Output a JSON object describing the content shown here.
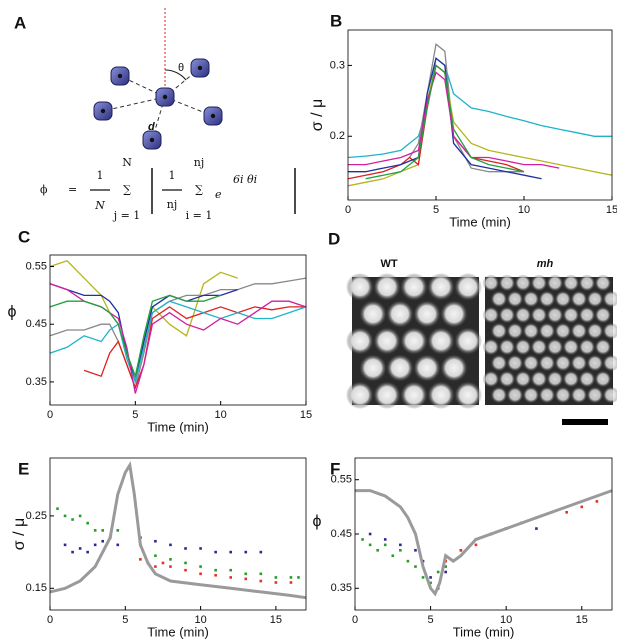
{
  "panel_a": {
    "label": "A",
    "theta": "θ",
    "d": "d",
    "formula": {
      "lhs": "ϕ",
      "eq": "=",
      "one": "1",
      "N": "N",
      "sum_top": "N",
      "sigma": "∑",
      "sum_bottom": "j = 1",
      "one2": "1",
      "nj": "nj",
      "sum2_top": "nj",
      "sum2_bottom": "i = 1",
      "e": "e",
      "exponent": "6i θi"
    }
  },
  "panel_d": {
    "label": "D",
    "left_title": "WT",
    "right_title": "mh"
  },
  "chart_data": [
    {
      "panel": "B",
      "type": "line",
      "ylabel": "σ / μ",
      "xlabel": "Time (min)",
      "xlim": [
        0,
        15
      ],
      "xticks": [
        0,
        5,
        10,
        15
      ],
      "ylim": [
        0.11,
        0.35
      ],
      "yticks": [
        0.2,
        0.3
      ],
      "x": [
        0,
        1,
        2,
        3,
        3.5,
        4,
        4.5,
        5,
        5.5,
        6,
        7,
        8,
        9,
        10,
        11,
        12,
        13,
        14,
        15
      ],
      "series": [
        {
          "color": "#1fb3c8",
          "values": [
            0.17,
            0.172,
            0.175,
            0.18,
            0.19,
            0.2,
            0.24,
            0.31,
            0.3,
            0.26,
            0.24,
            0.235,
            0.228,
            0.222,
            0.215,
            0.21,
            0.205,
            0.2,
            0.2
          ]
        },
        {
          "color": "#888888",
          "values": [
            null,
            null,
            null,
            null,
            0.17,
            0.19,
            0.26,
            0.33,
            0.32,
            0.2,
            0.155,
            0.15,
            0.15,
            0.15,
            null,
            null,
            null,
            null,
            null
          ]
        },
        {
          "color": "#b5b51f",
          "values": [
            0.13,
            0.135,
            0.14,
            0.15,
            0.155,
            0.16,
            0.25,
            0.3,
            0.29,
            0.22,
            0.19,
            0.18,
            0.175,
            0.17,
            0.165,
            0.16,
            0.155,
            0.15,
            0.145
          ]
        },
        {
          "color": "#e02020",
          "values": [
            0.14,
            0.145,
            0.15,
            0.16,
            0.17,
            0.16,
            0.24,
            0.3,
            0.29,
            0.2,
            0.17,
            0.165,
            0.16,
            0.15,
            null,
            null,
            null,
            null,
            null
          ]
        },
        {
          "color": "#2030a0",
          "values": [
            0.15,
            0.15,
            0.155,
            0.16,
            0.165,
            0.17,
            0.26,
            0.31,
            0.3,
            0.19,
            0.16,
            0.155,
            0.15,
            0.145,
            0.14,
            null,
            null,
            null,
            null
          ]
        },
        {
          "color": "#d020a0",
          "values": [
            0.16,
            0.16,
            0.165,
            0.17,
            0.175,
            0.18,
            0.25,
            0.29,
            0.28,
            0.2,
            0.17,
            0.17,
            0.165,
            0.16,
            0.16,
            0.155,
            null,
            null,
            null
          ]
        },
        {
          "color": "#20a040",
          "values": [
            null,
            0.14,
            0.145,
            0.15,
            0.16,
            0.17,
            0.24,
            0.3,
            0.29,
            0.21,
            0.17,
            0.16,
            0.155,
            0.15,
            null,
            null,
            null,
            null,
            null
          ]
        }
      ]
    },
    {
      "panel": "C",
      "type": "line",
      "ylabel": "ϕ",
      "xlabel": "Time (min)",
      "xlim": [
        0,
        15
      ],
      "xticks": [
        0,
        5,
        10,
        15
      ],
      "ylim": [
        0.31,
        0.57
      ],
      "yticks": [
        0.35,
        0.45,
        0.55
      ],
      "x": [
        0,
        1,
        2,
        3,
        3.5,
        4,
        4.5,
        5,
        5.5,
        6,
        7,
        8,
        9,
        10,
        11,
        12,
        13,
        14,
        15
      ],
      "series": [
        {
          "color": "#888888",
          "values": [
            0.43,
            0.44,
            0.44,
            0.45,
            0.45,
            0.42,
            0.38,
            0.34,
            0.4,
            0.47,
            0.49,
            0.5,
            0.5,
            0.51,
            0.51,
            0.52,
            0.52,
            0.525,
            0.53
          ]
        },
        {
          "color": "#b5b51f",
          "values": [
            0.55,
            0.56,
            0.53,
            0.5,
            0.47,
            0.45,
            0.4,
            0.36,
            0.42,
            0.48,
            0.45,
            0.43,
            0.52,
            0.54,
            0.53,
            null,
            null,
            null,
            null
          ]
        },
        {
          "color": "#e02020",
          "values": [
            null,
            null,
            0.37,
            0.36,
            0.4,
            0.42,
            0.38,
            0.34,
            0.38,
            0.46,
            0.48,
            0.46,
            0.47,
            0.48,
            0.47,
            0.48,
            0.475,
            0.48,
            0.48
          ]
        },
        {
          "color": "#2030a0",
          "values": [
            0.52,
            0.51,
            0.5,
            0.5,
            0.49,
            0.47,
            0.4,
            0.35,
            0.42,
            0.48,
            0.5,
            0.49,
            0.5,
            0.5,
            0.51,
            null,
            null,
            null,
            null
          ]
        },
        {
          "color": "#1fb3c8",
          "values": [
            0.4,
            0.41,
            0.43,
            0.42,
            0.44,
            0.45,
            0.39,
            0.35,
            0.41,
            0.47,
            0.49,
            0.48,
            0.47,
            0.46,
            0.47,
            0.46,
            0.46,
            0.47,
            0.48
          ]
        },
        {
          "color": "#d020a0",
          "values": [
            0.52,
            0.51,
            0.49,
            0.48,
            0.47,
            0.46,
            0.41,
            0.33,
            0.38,
            0.45,
            0.47,
            0.45,
            0.44,
            0.46,
            0.45,
            0.47,
            0.49,
            0.49,
            0.48
          ]
        },
        {
          "color": "#20a040",
          "values": [
            0.48,
            0.49,
            0.49,
            0.48,
            0.47,
            0.45,
            0.4,
            0.36,
            0.43,
            0.49,
            0.5,
            0.49,
            0.49,
            0.5,
            null,
            null,
            null,
            null,
            null
          ]
        }
      ]
    },
    {
      "panel": "E",
      "type": "scatter",
      "ylabel": "σ / μ",
      "xlabel": "Time  (min)",
      "xlim": [
        0,
        17
      ],
      "xticks": [
        0,
        5,
        10,
        15
      ],
      "ylim": [
        0.12,
        0.33
      ],
      "yticks": [
        0.15,
        0.25
      ],
      "series": [
        {
          "type": "scatter",
          "color": "#2a9a2a",
          "x": [
            0.5,
            1,
            1.5,
            2,
            2.5,
            3,
            3.5,
            4,
            4.5,
            6,
            7,
            8,
            9,
            10,
            11,
            12,
            13,
            14,
            15,
            16,
            16.5
          ],
          "values": [
            0.26,
            0.25,
            0.245,
            0.25,
            0.24,
            0.23,
            0.23,
            0.22,
            0.23,
            0.21,
            0.195,
            0.19,
            0.185,
            0.18,
            0.175,
            0.175,
            0.17,
            0.17,
            0.165,
            0.165,
            0.165
          ]
        },
        {
          "type": "scatter",
          "color": "#2a2a90",
          "x": [
            1,
            1.5,
            2,
            2.5,
            3,
            3.5,
            4,
            4.5,
            6,
            7,
            8,
            9,
            10,
            11,
            12,
            13,
            14
          ],
          "values": [
            0.21,
            0.2,
            0.205,
            0.2,
            0.21,
            0.215,
            0.22,
            0.21,
            0.22,
            0.215,
            0.21,
            0.205,
            0.205,
            0.2,
            0.2,
            0.2,
            0.2
          ]
        },
        {
          "type": "scatter",
          "color": "#e83020",
          "x": [
            6,
            6.5,
            7,
            7.5,
            8,
            9,
            10,
            11,
            12,
            13,
            14,
            15,
            16
          ],
          "values": [
            0.19,
            0.185,
            0.18,
            0.185,
            0.18,
            0.175,
            0.17,
            0.168,
            0.165,
            0.163,
            0.16,
            0.158,
            0.158
          ]
        },
        {
          "type": "line",
          "color": "#9a9a9a",
          "x": [
            0,
            1,
            2,
            3,
            4,
            4.5,
            5,
            5.3,
            5.6,
            6,
            6.5,
            7,
            8,
            10,
            12,
            14,
            16,
            17
          ],
          "values": [
            0.145,
            0.15,
            0.16,
            0.18,
            0.22,
            0.28,
            0.31,
            0.32,
            0.28,
            0.21,
            0.185,
            0.17,
            0.16,
            0.155,
            0.15,
            0.145,
            0.14,
            0.137
          ]
        }
      ]
    },
    {
      "panel": "F",
      "type": "scatter",
      "ylabel": "ϕ",
      "xlabel": "Time  (min)",
      "xlim": [
        0,
        17
      ],
      "xticks": [
        0,
        5,
        10,
        15
      ],
      "ylim": [
        0.31,
        0.59
      ],
      "yticks": [
        0.35,
        0.45,
        0.55
      ],
      "series": [
        {
          "type": "scatter",
          "color": "#2a9a2a",
          "x": [
            0.5,
            1,
            1.5,
            2,
            2.5,
            3,
            3.5,
            4,
            4.5,
            5,
            5.5,
            6
          ],
          "values": [
            0.44,
            0.43,
            0.42,
            0.43,
            0.41,
            0.42,
            0.4,
            0.39,
            0.37,
            0.36,
            0.38,
            0.39
          ]
        },
        {
          "type": "scatter",
          "color": "#2a2a90",
          "x": [
            1,
            2,
            3,
            4,
            4.5,
            5,
            5.5,
            6,
            7,
            8,
            9,
            10,
            11,
            12
          ],
          "values": [
            0.45,
            0.44,
            0.43,
            0.42,
            0.4,
            0.37,
            0.35,
            0.38,
            0.42,
            0.44,
            0.45,
            0.46,
            0.47,
            0.46
          ]
        },
        {
          "type": "scatter",
          "color": "#e83020",
          "x": [
            6,
            7,
            8,
            9,
            10,
            11,
            12,
            13,
            14,
            15,
            16
          ],
          "values": [
            0.4,
            0.42,
            0.43,
            0.45,
            0.46,
            0.47,
            0.48,
            0.49,
            0.49,
            0.5,
            0.51
          ]
        },
        {
          "type": "line",
          "color": "#9a9a9a",
          "x": [
            0,
            1,
            2,
            3,
            3.5,
            4,
            4.5,
            5,
            5.3,
            5.6,
            6,
            6.5,
            7,
            8,
            10,
            12,
            14,
            16,
            17
          ],
          "values": [
            0.53,
            0.53,
            0.52,
            0.5,
            0.48,
            0.45,
            0.39,
            0.35,
            0.34,
            0.36,
            0.41,
            0.4,
            0.41,
            0.44,
            0.46,
            0.48,
            0.5,
            0.52,
            0.53
          ]
        }
      ]
    }
  ]
}
